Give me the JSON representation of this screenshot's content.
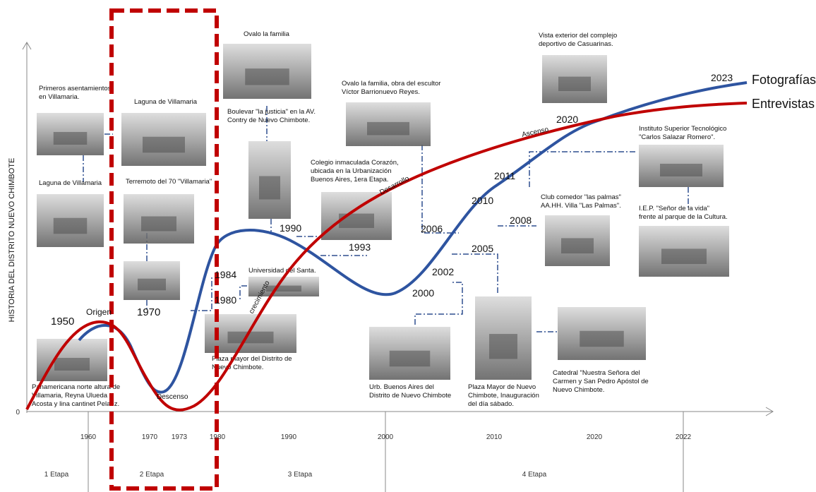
{
  "axis": {
    "y_label": "HISTORIA DEL DISTRITO NUEVO CHIMBOTE",
    "origin": "0",
    "years": [
      "1960",
      "1970",
      "1973",
      "1980",
      "1990",
      "2000",
      "2010",
      "2020",
      "2022"
    ]
  },
  "stages": [
    "1 Etapa",
    "2 Etapa",
    "3 Etapa",
    "4 Etapa"
  ],
  "legend": [
    "Fotografías",
    "Entrevistas"
  ],
  "curve_labels": [
    "1950",
    "Origen",
    "1970",
    "Descenso",
    "1984",
    "1980",
    "1990",
    "1993",
    "crecimiento",
    "Desarrollo",
    "2000",
    "2002",
    "2005",
    "2006",
    "2008",
    "2010",
    "2011",
    "2020",
    "Ascenso",
    "2023"
  ],
  "photos": [
    {
      "caption": [
        "Primeros asentamientos",
        "en Villamaria."
      ]
    },
    {
      "caption": [
        "Laguna de Villamaria"
      ]
    },
    {
      "caption": [
        "Laguna de Villamaria"
      ]
    },
    {
      "caption": [
        "Terremoto del 70 \"Villamaria\""
      ]
    },
    {
      "caption": []
    },
    {
      "caption": [
        "Panamericana norte altura de",
        "Villamaria, Reyna Ulueda",
        "Acosta y lina cantinet Pelaez."
      ]
    },
    {
      "caption": [
        "Ovalo la familia"
      ]
    },
    {
      "caption": [
        "Boulevar \"la justicia\" en la AV.",
        "Contry de Nuevo Chimbote."
      ]
    },
    {
      "caption": [
        "Universidad del Santa."
      ]
    },
    {
      "caption": [
        "Plaza mayor del Distrito de",
        "Nuevo Chimbote."
      ]
    },
    {
      "caption": [
        "Colegio inmaculada Corazón,",
        "ubicada en la Urbanización",
        "Buenos Aires, 1era Etapa."
      ]
    },
    {
      "caption": [
        "Ovalo la familia, obra del escultor",
        "Víctor Barrionuevo Reyes."
      ]
    },
    {
      "caption": [
        "Urb.  Buenos  Aires  del",
        "Distrito de Nuevo Chimbote"
      ]
    },
    {
      "caption": [
        "Plaza Mayor de Nuevo",
        "Chimbote, Inauguración",
        "del día sábado."
      ]
    },
    {
      "caption": [
        "Vista exterior del complejo",
        "deportivo de Casuarinas."
      ]
    },
    {
      "caption": [
        "Club comedor \"las palmas\"",
        "AA.HH. Villa \"Las Palmas\"."
      ]
    },
    {
      "caption": [
        "Catedral \"Nuestra Señora del",
        "Carmen y San Pedro Apóstol de",
        "Nuevo Chimbote."
      ]
    },
    {
      "caption": [
        "Instituto Superior Tecnológico",
        "\"Carlos Salazar Romero\"."
      ]
    },
    {
      "caption": [
        "I.E.P. \"Señor de la vida\"",
        "frente al parque de la Cultura."
      ]
    }
  ]
}
